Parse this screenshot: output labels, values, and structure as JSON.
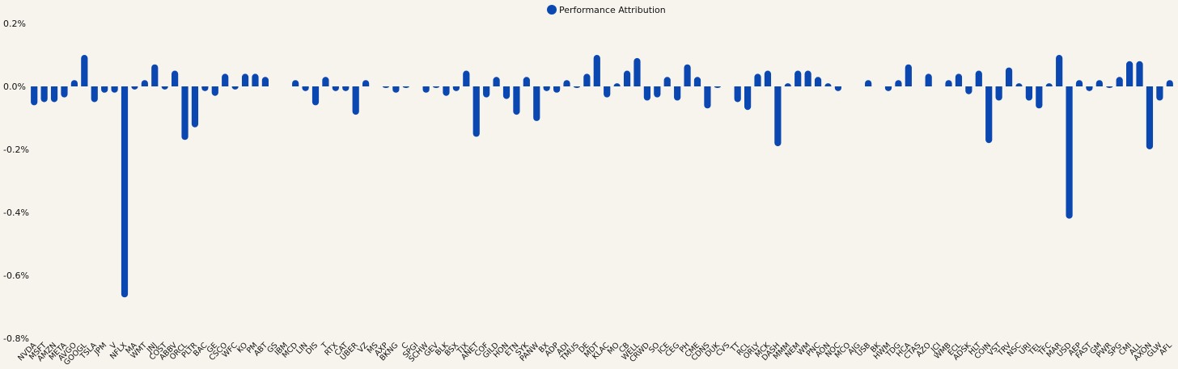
{
  "chart_data": {
    "type": "bar",
    "legend": {
      "label": "Performance Attribution",
      "position": "top-center"
    },
    "color": "#0a47b0",
    "ylim": [
      -0.8,
      0.2
    ],
    "yticks": [
      "0.2%",
      "0.0%",
      "-0.2%",
      "-0.4%",
      "-0.6%",
      "-0.8%"
    ],
    "grid": false,
    "categories": [
      "NVDA",
      "MSFT",
      "AMZN",
      "META",
      "AVGO",
      "GOOGL",
      "TSLA",
      "JPM",
      "V",
      "NFLX",
      "MA",
      "WMT",
      "JNJ",
      "COST",
      "ABBV",
      "ORCL",
      "PLTR",
      "BAC",
      "GE",
      "CSCO",
      "WFC",
      "KO",
      "PM",
      "ABT",
      "GS",
      "IBM",
      "MCD",
      "LIN",
      "DIS",
      "T",
      "RTX",
      "CAT",
      "UBER",
      "VZ",
      "MS",
      "AXP",
      "BKNG",
      "C",
      "SPGI",
      "SCHW",
      "GEV",
      "BLK",
      "BSX",
      "TJX",
      "ANET",
      "COF",
      "GILD",
      "HON",
      "ETN",
      "SYK",
      "PANW",
      "BX",
      "ADP",
      "ADI",
      "TMUS",
      "DE",
      "MDT",
      "KLAC",
      "MO",
      "CB",
      "WELL",
      "CRWD",
      "SO",
      "ICE",
      "CEG",
      "PH",
      "CME",
      "CDNS",
      "DUK",
      "CVS",
      "TT",
      "RCL",
      "ORLY",
      "MCK",
      "DASH",
      "MMM",
      "NEM",
      "WM",
      "PNC",
      "AON",
      "NOC",
      "MCO",
      "AJG",
      "USB",
      "BK",
      "HWM",
      "TDG",
      "HCA",
      "CTAS",
      "AZO",
      "JCI",
      "WMB",
      "ECL",
      "ADSK",
      "HLT",
      "COIN",
      "VST",
      "TRV",
      "NSC",
      "URI",
      "TEL",
      "TFC",
      "MAR",
      "USD",
      "AEP",
      "FAST",
      "GM",
      "PWR",
      "SPG",
      "CMI",
      "ALL",
      "AXON",
      "GLW",
      "AFL"
    ],
    "values": [
      -0.06,
      -0.05,
      -0.05,
      -0.035,
      0.02,
      0.1,
      -0.05,
      -0.02,
      -0.02,
      -0.67,
      -0.01,
      0.02,
      0.07,
      -0.01,
      0.05,
      -0.17,
      -0.13,
      -0.015,
      -0.03,
      0.04,
      -0.01,
      0.04,
      0.04,
      0.03,
      0,
      0,
      0.02,
      -0.015,
      -0.06,
      0.03,
      -0.015,
      -0.015,
      -0.09,
      0.02,
      0,
      -0.005,
      -0.02,
      -0.005,
      0,
      -0.02,
      -0.005,
      -0.03,
      -0.015,
      0.05,
      -0.16,
      -0.035,
      0.03,
      -0.04,
      -0.09,
      0.03,
      -0.11,
      -0.015,
      -0.02,
      0.02,
      -0.005,
      0.04,
      0.1,
      -0.035,
      0.01,
      0.05,
      0.09,
      -0.045,
      -0.035,
      0.03,
      -0.045,
      0.07,
      0.03,
      -0.07,
      -0.005,
      0,
      -0.05,
      -0.075,
      0.04,
      0.05,
      -0.19,
      0.01,
      0.05,
      0.05,
      0.03,
      0.01,
      -0.015,
      0,
      0,
      0.02,
      0,
      -0.015,
      0.02,
      0.07,
      0,
      0.04,
      0,
      0.02,
      0.04,
      -0.025,
      0.05,
      -0.18,
      -0.045,
      0.06,
      0.01,
      -0.045,
      -0.07,
      0.01,
      0.1,
      -0.42,
      0.02,
      -0.015,
      0.02,
      -0.005,
      0.03,
      0.08,
      0.08,
      -0.2,
      -0.045,
      0.02
    ]
  }
}
